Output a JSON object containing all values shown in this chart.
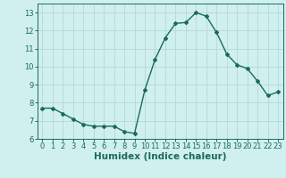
{
  "x": [
    0,
    1,
    2,
    3,
    4,
    5,
    6,
    7,
    8,
    9,
    10,
    11,
    12,
    13,
    14,
    15,
    16,
    17,
    18,
    19,
    20,
    21,
    22,
    23
  ],
  "y": [
    7.7,
    7.7,
    7.4,
    7.1,
    6.8,
    6.7,
    6.7,
    6.7,
    6.4,
    6.3,
    8.7,
    10.4,
    11.6,
    12.4,
    12.45,
    13.0,
    12.8,
    11.9,
    10.7,
    10.1,
    9.9,
    9.2,
    8.4,
    8.6
  ],
  "line_color": "#1a6b5a",
  "marker": "D",
  "marker_size": 2.0,
  "bg_color": "#d0efef",
  "grid_color": "#b5d8d5",
  "xlabel": "Humidex (Indice chaleur)",
  "ylim": [
    6,
    13.5
  ],
  "xlim": [
    -0.5,
    23.5
  ],
  "yticks": [
    6,
    7,
    8,
    9,
    10,
    11,
    12,
    13
  ],
  "xticks": [
    0,
    1,
    2,
    3,
    4,
    5,
    6,
    7,
    8,
    9,
    10,
    11,
    12,
    13,
    14,
    15,
    16,
    17,
    18,
    19,
    20,
    21,
    22,
    23
  ],
  "tick_fontsize": 6.0,
  "xlabel_fontsize": 7.5,
  "line_width": 1.0
}
